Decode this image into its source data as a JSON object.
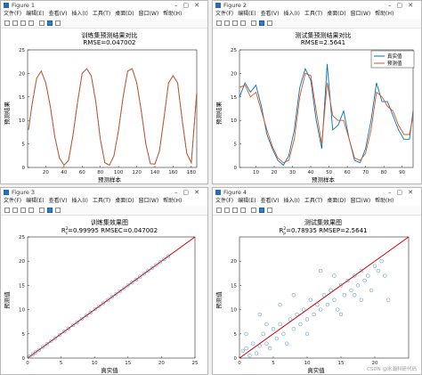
{
  "figures": [
    {
      "id": "fig1",
      "window_title": "Figure 1",
      "menu": [
        "文件(F)",
        "编辑(E)",
        "查看(V)",
        "插入(I)",
        "工具(T)",
        "桌面(D)",
        "窗口(W)",
        "帮助(H)"
      ],
      "chart_data": {
        "type": "line",
        "title": "训练集预测结果对比",
        "subtitle": "RMSE=0.047002",
        "xlabel": "预测样本",
        "ylabel": "预测结果",
        "xlim": [
          0,
          186
        ],
        "ylim": [
          0,
          25
        ],
        "xticks": [
          20,
          40,
          60,
          80,
          100,
          120,
          140,
          160,
          180
        ],
        "yticks": [
          0,
          5,
          10,
          15,
          20,
          25
        ],
        "legend": "none",
        "grid": false,
        "series": [
          {
            "name": "真实值",
            "color": "#0072bd",
            "x": [
              1,
              5,
              10,
              15,
              20,
              25,
              30,
              35,
              40,
              45,
              50,
              55,
              60,
              65,
              70,
              75,
              80,
              85,
              90,
              95,
              100,
              105,
              110,
              115,
              120,
              125,
              130,
              135,
              140,
              145,
              150,
              155,
              160,
              165,
              170,
              175,
              180,
              186
            ],
            "values": [
              8,
              13.5,
              19,
              20.5,
              18,
              13,
              6.5,
              2,
              0.5,
              1.5,
              7,
              14,
              20,
              21,
              19.5,
              14,
              6,
              1,
              0.5,
              2.5,
              8,
              15,
              20.5,
              21,
              18,
              12,
              5,
              0.8,
              0.7,
              3.5,
              10.5,
              18,
              19.5,
              18,
              10,
              3,
              1,
              16
            ]
          },
          {
            "name": "预测值",
            "color": "#d95319",
            "x": [
              1,
              5,
              10,
              15,
              20,
              25,
              30,
              35,
              40,
              45,
              50,
              55,
              60,
              65,
              70,
              75,
              80,
              85,
              90,
              95,
              100,
              105,
              110,
              115,
              120,
              125,
              130,
              135,
              140,
              145,
              150,
              155,
              160,
              165,
              170,
              175,
              180,
              186
            ],
            "values": [
              8,
              13.5,
              19,
              20.5,
              18,
              13,
              6.5,
              2,
              0.5,
              1.5,
              7,
              14,
              20,
              21,
              19.5,
              14,
              6,
              1,
              0.5,
              2.5,
              8,
              15,
              20.5,
              21,
              18,
              12,
              5,
              0.8,
              0.7,
              3.5,
              10.5,
              18,
              19.5,
              18,
              10,
              3,
              1,
              16
            ]
          }
        ]
      }
    },
    {
      "id": "fig2",
      "window_title": "Figure 2",
      "menu": [
        "文件(F)",
        "编辑(E)",
        "查看(V)",
        "插入(I)",
        "工具(T)",
        "桌面(D)",
        "窗口(W)",
        "帮助(H)"
      ],
      "chart_data": {
        "type": "line",
        "title": "测试集预测结果对比",
        "subtitle": "RMSE=2.5641",
        "xlabel": "预测样本",
        "ylabel": "预测结果",
        "xlim": [
          1,
          96
        ],
        "ylim": [
          0,
          25
        ],
        "xticks": [
          10,
          20,
          30,
          40,
          50,
          60,
          70,
          80,
          90
        ],
        "yticks": [
          0,
          5,
          10,
          15,
          20,
          25
        ],
        "legend": "top-right",
        "grid": false,
        "series": [
          {
            "name": "真实值",
            "color": "#0072bd",
            "x": [
              1,
              4,
              7,
              10,
              13,
              16,
              19,
              22,
              25,
              28,
              31,
              34,
              37,
              40,
              43,
              46,
              49,
              52,
              55,
              58,
              61,
              64,
              67,
              70,
              73,
              76,
              79,
              82,
              85,
              88,
              91,
              94,
              96
            ],
            "values": [
              15,
              18,
              16,
              17.5,
              13,
              7,
              4,
              1.5,
              0.5,
              2.5,
              8,
              17,
              21,
              18.5,
              10,
              4,
              22,
              8,
              9,
              12,
              6,
              1.5,
              1,
              4,
              10,
              18,
              14,
              14,
              11,
              8,
              6,
              6,
              12
            ]
          },
          {
            "name": "预测值",
            "color": "#d95319",
            "x": [
              1,
              4,
              7,
              10,
              13,
              16,
              19,
              22,
              25,
              28,
              31,
              34,
              37,
              40,
              43,
              46,
              49,
              52,
              55,
              58,
              61,
              64,
              67,
              70,
              73,
              76,
              79,
              82,
              85,
              88,
              91,
              94,
              96
            ],
            "values": [
              17,
              17.5,
              15,
              16,
              12,
              8,
              4.5,
              2,
              1,
              1.5,
              6,
              15,
              20,
              19.5,
              12,
              5,
              18,
              11,
              10,
              10,
              6,
              2,
              1.5,
              3,
              8,
              16,
              15,
              13,
              12,
              9,
              7,
              7,
              11
            ]
          }
        ]
      }
    },
    {
      "id": "fig3",
      "window_title": "Figure 3",
      "menu": [
        "文件(F)",
        "编辑(E)",
        "查看(V)",
        "插入(I)",
        "工具(T)",
        "桌面(D)",
        "窗口(W)",
        "帮助(H)"
      ],
      "chart_data": {
        "type": "scatter",
        "title": "训练集效果图",
        "subtitle_parts": {
          "r2_main": "R",
          "r2_sup": "2",
          "r2_sub": "c",
          "r2_rest": "=0.99995  RMSEC=0.047002"
        },
        "xlabel": "真实值",
        "ylabel": "预测值",
        "xlim": [
          0,
          25
        ],
        "ylim": [
          0,
          25
        ],
        "xticks": [
          0,
          5,
          10,
          15,
          20,
          25
        ],
        "yticks": [
          0,
          5,
          10,
          15,
          20,
          25
        ],
        "fit_line": {
          "from": [
            0,
            0
          ],
          "to": [
            25,
            25
          ],
          "color": "#d00000"
        },
        "points": [
          [
            0.3,
            0.3
          ],
          [
            0.8,
            0.8
          ],
          [
            1.2,
            1.2
          ],
          [
            1.7,
            1.7
          ],
          [
            2.3,
            2.3
          ],
          [
            2.9,
            2.9
          ],
          [
            3.5,
            3.5
          ],
          [
            4.1,
            4.1
          ],
          [
            4.8,
            4.8
          ],
          [
            5.5,
            5.5
          ],
          [
            6.1,
            6.1
          ],
          [
            6.8,
            6.8
          ],
          [
            7.4,
            7.4
          ],
          [
            8.1,
            8.1
          ],
          [
            8.8,
            8.8
          ],
          [
            9.4,
            9.4
          ],
          [
            10.1,
            10.1
          ],
          [
            10.7,
            10.7
          ],
          [
            11.3,
            11.3
          ],
          [
            12.0,
            12.0
          ],
          [
            12.6,
            12.6
          ],
          [
            13.2,
            13.2
          ],
          [
            13.8,
            13.8
          ],
          [
            14.4,
            14.4
          ],
          [
            15.0,
            15.0
          ],
          [
            15.6,
            15.6
          ],
          [
            16.2,
            16.2
          ],
          [
            16.8,
            16.8
          ],
          [
            17.4,
            17.4
          ],
          [
            18.0,
            18.0
          ],
          [
            18.6,
            18.6
          ],
          [
            19.2,
            19.2
          ],
          [
            19.8,
            19.8
          ],
          [
            20.4,
            20.4
          ],
          [
            21.0,
            21.0
          ]
        ]
      }
    },
    {
      "id": "fig4",
      "window_title": "Figure 4",
      "menu": [
        "文件(F)",
        "编辑(E)",
        "查看(V)",
        "插入(I)",
        "工具(T)",
        "桌面(D)",
        "窗口(W)",
        "帮助(H)"
      ],
      "watermark": "CSDN @水瀚科研代码",
      "chart_data": {
        "type": "scatter",
        "title": "测试集效果图",
        "subtitle_parts": {
          "r2_main": "R",
          "r2_sup": "2",
          "r2_sub": "p",
          "r2_rest": "=0.78935  RMSEP=2.5641"
        },
        "xlabel": "真实值",
        "ylabel": "预测值",
        "xlim": [
          0,
          25
        ],
        "ylim": [
          0,
          25
        ],
        "xticks": [
          0,
          5,
          10,
          15,
          20
        ],
        "yticks": [
          0,
          5,
          10,
          15,
          20
        ],
        "fit_line": {
          "from": [
            0,
            0
          ],
          "to": [
            25,
            25
          ],
          "color": "#d00000"
        },
        "points": [
          [
            0.5,
            1.5
          ],
          [
            1,
            2
          ],
          [
            1.5,
            0.5
          ],
          [
            2,
            3
          ],
          [
            2.5,
            1
          ],
          [
            3,
            2.5
          ],
          [
            3.5,
            5
          ],
          [
            4,
            3
          ],
          [
            4.5,
            2
          ],
          [
            5,
            6
          ],
          [
            5.5,
            4
          ],
          [
            6,
            7
          ],
          [
            6.5,
            5
          ],
          [
            7,
            3
          ],
          [
            7.5,
            8
          ],
          [
            8,
            6
          ],
          [
            8.5,
            9
          ],
          [
            9,
            7
          ],
          [
            9.5,
            10
          ],
          [
            10,
            8
          ],
          [
            10.5,
            12
          ],
          [
            11,
            9
          ],
          [
            11.5,
            11
          ],
          [
            12,
            10
          ],
          [
            12.5,
            13
          ],
          [
            13,
            11
          ],
          [
            13.5,
            14
          ],
          [
            14,
            12
          ],
          [
            14.5,
            10
          ],
          [
            15,
            15
          ],
          [
            15.5,
            13
          ],
          [
            16,
            16
          ],
          [
            16.5,
            14
          ],
          [
            17,
            17
          ],
          [
            17.5,
            15
          ],
          [
            18,
            18
          ],
          [
            18.5,
            16
          ],
          [
            19,
            17
          ],
          [
            19.5,
            14
          ],
          [
            20,
            19
          ],
          [
            20.5,
            18
          ],
          [
            21,
            20
          ],
          [
            21.5,
            17
          ],
          [
            22,
            12
          ],
          [
            3,
            9
          ],
          [
            6,
            11
          ],
          [
            8,
            13
          ],
          [
            12,
            18
          ],
          [
            15,
            9
          ],
          [
            18,
            12
          ],
          [
            1,
            5
          ],
          [
            4,
            7
          ],
          [
            10,
            5
          ],
          [
            14,
            17
          ],
          [
            17,
            13
          ]
        ]
      }
    }
  ]
}
